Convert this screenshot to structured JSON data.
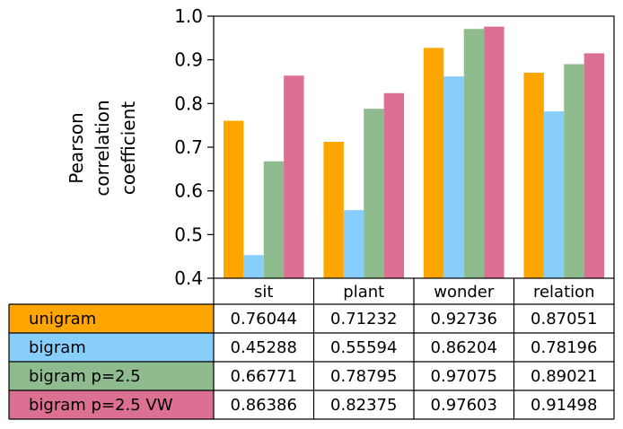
{
  "chart_data": {
    "type": "bar",
    "title": "",
    "xlabel": "",
    "ylabel_lines": [
      "Pearson",
      "correlation",
      "coefficient"
    ],
    "ylim": [
      0.4,
      1.0
    ],
    "yticks": [
      "0.4",
      "0.5",
      "0.6",
      "0.7",
      "0.8",
      "0.9",
      "1.0"
    ],
    "categories": [
      "sit",
      "plant",
      "wonder",
      "relation"
    ],
    "series": [
      {
        "name": "unigram",
        "color": "#ffa500",
        "values": [
          0.76044,
          0.71232,
          0.92736,
          0.87051
        ]
      },
      {
        "name": "bigram",
        "color": "#87cefa",
        "values": [
          0.45288,
          0.55594,
          0.86204,
          0.78196
        ]
      },
      {
        "name": "bigram p=2.5",
        "color": "#8fbc8f",
        "values": [
          0.66771,
          0.78795,
          0.97075,
          0.89021
        ]
      },
      {
        "name": "bigram p=2.5 VW",
        "color": "#db7093",
        "values": [
          0.86386,
          0.82375,
          0.97603,
          0.91498
        ]
      }
    ],
    "table": {
      "rows": [
        [
          "0.76044",
          "0.71232",
          "0.92736",
          "0.87051"
        ],
        [
          "0.45288",
          "0.55594",
          "0.86204",
          "0.78196"
        ],
        [
          "0.66771",
          "0.78795",
          "0.97075",
          "0.89021"
        ],
        [
          "0.86386",
          "0.82375",
          "0.97603",
          "0.91498"
        ]
      ]
    }
  }
}
